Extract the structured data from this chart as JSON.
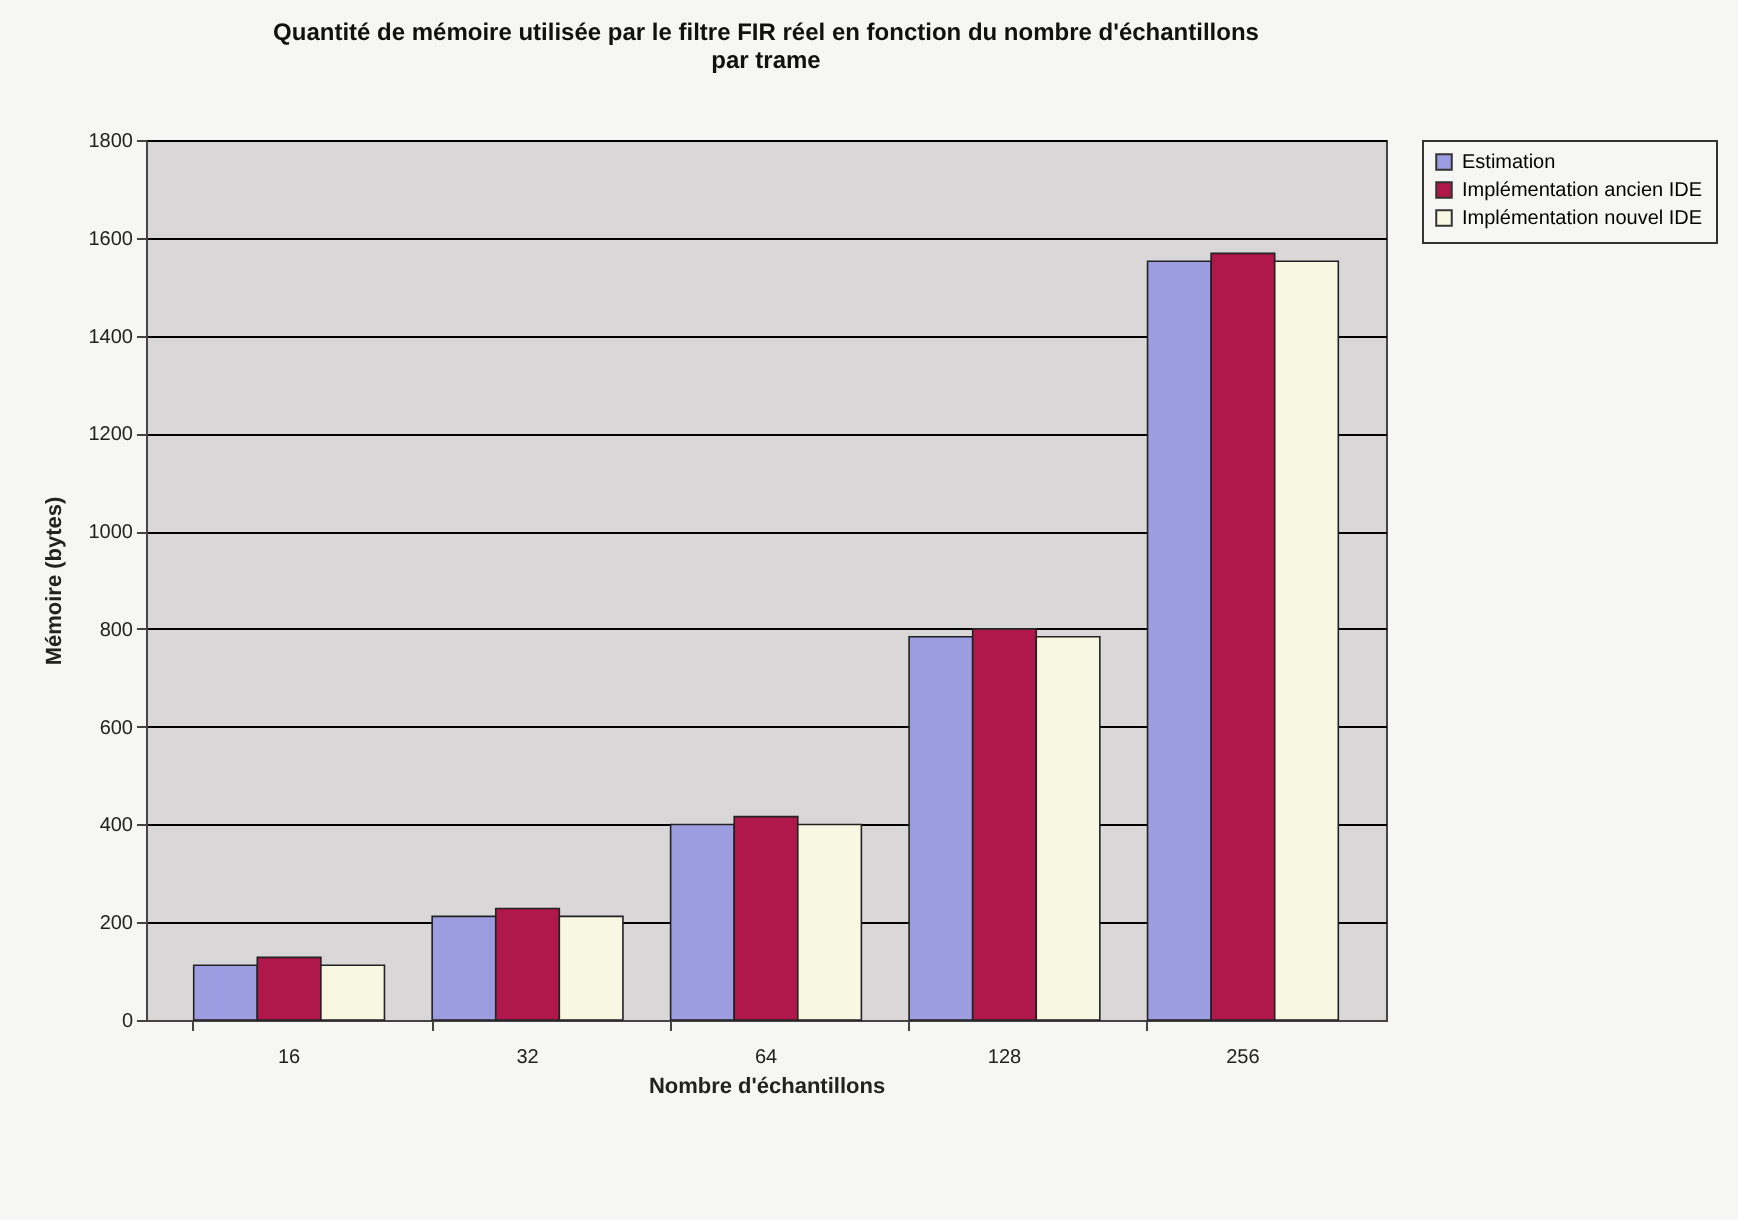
{
  "chart_data": {
    "type": "bar",
    "title": "Quantité de mémoire utilisée par le filtre FIR réel en fonction du nombre d'échantillons par trame",
    "xlabel": "Nombre d'échantillons",
    "ylabel": "Mémoire (bytes)",
    "categories": [
      "16",
      "32",
      "64",
      "128",
      "256"
    ],
    "series": [
      {
        "name": "Estimation",
        "color": "#9c9ce0",
        "values": [
          112,
          212,
          400,
          784,
          1552
        ]
      },
      {
        "name": "Implémentation ancien IDE",
        "color": "#b0174a",
        "values": [
          128,
          228,
          416,
          800,
          1568
        ]
      },
      {
        "name": "Implémentation nouvel IDE",
        "color": "#f8f8e2",
        "values": [
          112,
          212,
          400,
          784,
          1552
        ]
      }
    ],
    "ylim": [
      0,
      1800
    ],
    "yticks": [
      0,
      200,
      400,
      600,
      800,
      1000,
      1200,
      1400,
      1600,
      1800
    ],
    "grid": "y",
    "legend": "right"
  }
}
